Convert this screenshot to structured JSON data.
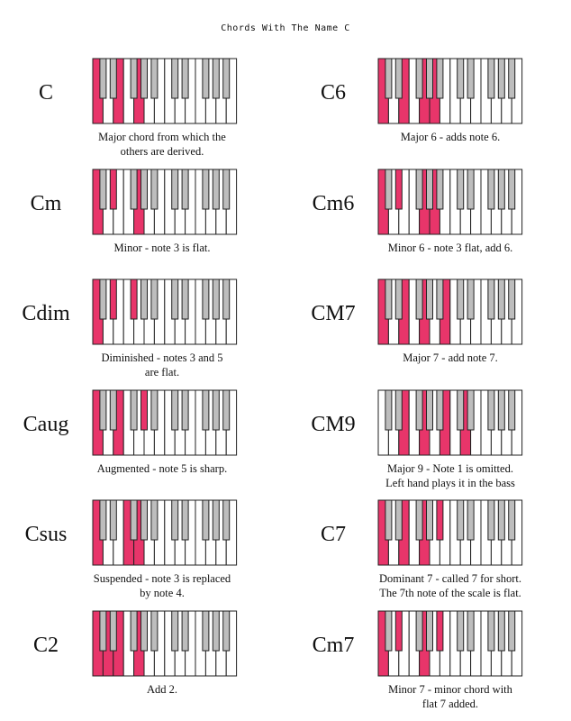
{
  "title": "Chords With The Name C",
  "colors": {
    "highlight": "#e8356a",
    "black_key": "#bdbdbd",
    "white_key": "#ffffff",
    "outline": "#222222"
  },
  "chords": [
    {
      "name": "C",
      "keys": [
        "C",
        "E",
        "G"
      ],
      "desc": [
        "Major chord from which the",
        "others are derived."
      ]
    },
    {
      "name": "C6",
      "keys": [
        "C",
        "E",
        "G",
        "A"
      ],
      "desc": [
        "Major 6 - adds note 6."
      ]
    },
    {
      "name": "Cm",
      "keys": [
        "C",
        "Eb",
        "G"
      ],
      "desc": [
        "Minor - note 3 is flat."
      ]
    },
    {
      "name": "Cm6",
      "keys": [
        "C",
        "Eb",
        "G",
        "A"
      ],
      "desc": [
        "Minor 6 - note 3 flat, add 6."
      ]
    },
    {
      "name": "Cdim",
      "keys": [
        "C",
        "Eb",
        "Gb"
      ],
      "desc": [
        "Diminished - notes 3 and 5",
        "are flat."
      ]
    },
    {
      "name": "CM7",
      "keys": [
        "C",
        "E",
        "G",
        "B"
      ],
      "desc": [
        "Major 7 - add note 7."
      ]
    },
    {
      "name": "Caug",
      "keys": [
        "C",
        "E",
        "G#"
      ],
      "desc": [
        "Augmented - note 5 is sharp."
      ]
    },
    {
      "name": "CM9",
      "keys": [
        "E",
        "G",
        "B",
        "D2"
      ],
      "desc": [
        "Major 9 - Note 1 is omitted.",
        "Left hand plays it in the bass"
      ]
    },
    {
      "name": "Csus",
      "keys": [
        "C",
        "F",
        "G"
      ],
      "desc": [
        "Suspended - note 3 is replaced",
        "by note 4."
      ]
    },
    {
      "name": "C7",
      "keys": [
        "C",
        "E",
        "G",
        "Bb"
      ],
      "desc": [
        "Dominant 7 - called 7 for short.",
        "The 7th note of the scale is flat."
      ]
    },
    {
      "name": "C2",
      "keys": [
        "C",
        "D",
        "E",
        "G"
      ],
      "desc": [
        "Add 2."
      ]
    },
    {
      "name": "Cm7",
      "keys": [
        "C",
        "Eb",
        "G",
        "Bb"
      ],
      "desc": [
        "Minor 7 - minor chord with",
        "flat 7 added."
      ]
    }
  ]
}
